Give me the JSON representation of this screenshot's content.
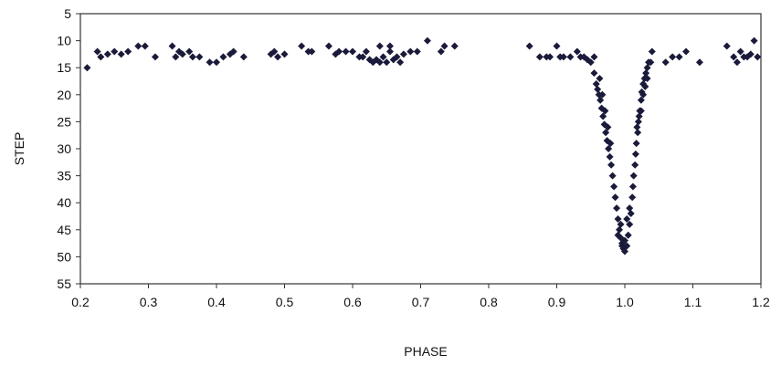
{
  "chart_data": {
    "type": "scatter",
    "title": "",
    "xlabel": "PHASE",
    "ylabel": "STEP",
    "xlim": [
      0.2,
      1.2
    ],
    "ylim": [
      5,
      55
    ],
    "y_inverted": true,
    "x_ticks": [
      "0.2",
      "0.3",
      "0.4",
      "0.5",
      "0.6",
      "0.7",
      "0.8",
      "0.9",
      "1.0",
      "1.1",
      "1.2"
    ],
    "y_ticks": [
      "5",
      "10",
      "15",
      "20",
      "25",
      "30",
      "35",
      "40",
      "45",
      "50",
      "55"
    ],
    "grid": false,
    "legend": "none",
    "marker": "diamond",
    "marker_color": "#1a1a3a",
    "series": [
      {
        "points": [
          [
            0.21,
            15
          ],
          [
            0.225,
            12
          ],
          [
            0.23,
            13
          ],
          [
            0.24,
            12.5
          ],
          [
            0.25,
            12
          ],
          [
            0.26,
            12.5
          ],
          [
            0.27,
            12
          ],
          [
            0.285,
            11
          ],
          [
            0.295,
            11
          ],
          [
            0.31,
            13
          ],
          [
            0.335,
            11
          ],
          [
            0.34,
            13
          ],
          [
            0.345,
            12
          ],
          [
            0.35,
            12.5
          ],
          [
            0.36,
            12
          ],
          [
            0.365,
            13
          ],
          [
            0.375,
            13
          ],
          [
            0.39,
            14
          ],
          [
            0.4,
            14
          ],
          [
            0.41,
            13
          ],
          [
            0.42,
            12.5
          ],
          [
            0.425,
            12
          ],
          [
            0.44,
            13
          ],
          [
            0.48,
            12.5
          ],
          [
            0.485,
            12
          ],
          [
            0.49,
            13
          ],
          [
            0.5,
            12.5
          ],
          [
            0.525,
            11
          ],
          [
            0.535,
            12
          ],
          [
            0.54,
            12
          ],
          [
            0.565,
            11
          ],
          [
            0.575,
            12.5
          ],
          [
            0.58,
            12
          ],
          [
            0.59,
            12
          ],
          [
            0.6,
            12
          ],
          [
            0.61,
            13
          ],
          [
            0.615,
            13
          ],
          [
            0.62,
            12
          ],
          [
            0.625,
            13.5
          ],
          [
            0.63,
            14
          ],
          [
            0.635,
            13.5
          ],
          [
            0.64,
            14
          ],
          [
            0.645,
            13
          ],
          [
            0.65,
            14
          ],
          [
            0.655,
            12
          ],
          [
            0.66,
            13.5
          ],
          [
            0.665,
            13
          ],
          [
            0.67,
            14
          ],
          [
            0.675,
            12.5
          ],
          [
            0.685,
            12
          ],
          [
            0.695,
            12
          ],
          [
            0.71,
            10
          ],
          [
            0.73,
            12
          ],
          [
            0.735,
            11
          ],
          [
            0.75,
            11
          ],
          [
            0.64,
            11
          ],
          [
            0.655,
            11
          ],
          [
            0.86,
            11
          ],
          [
            0.875,
            13
          ],
          [
            0.885,
            13
          ],
          [
            0.89,
            13
          ],
          [
            0.9,
            11
          ],
          [
            0.905,
            13
          ],
          [
            0.91,
            13
          ],
          [
            0.92,
            13
          ],
          [
            0.93,
            12
          ],
          [
            0.935,
            13
          ],
          [
            0.94,
            13
          ],
          [
            0.945,
            13.5
          ],
          [
            0.95,
            14
          ],
          [
            0.955,
            13
          ],
          [
            0.955,
            16
          ],
          [
            0.958,
            18
          ],
          [
            0.96,
            19
          ],
          [
            0.962,
            20
          ],
          [
            0.964,
            21
          ],
          [
            0.966,
            22.5
          ],
          [
            0.968,
            24
          ],
          [
            0.97,
            25.5
          ],
          [
            0.972,
            27
          ],
          [
            0.974,
            28.5
          ],
          [
            0.976,
            30
          ],
          [
            0.978,
            31.5
          ],
          [
            0.98,
            33
          ],
          [
            0.982,
            35
          ],
          [
            0.984,
            37
          ],
          [
            0.986,
            39
          ],
          [
            0.988,
            41
          ],
          [
            0.99,
            43
          ],
          [
            0.992,
            45
          ],
          [
            0.994,
            46.5
          ],
          [
            0.996,
            47.5
          ],
          [
            0.998,
            48.5
          ],
          [
            1.0,
            49
          ],
          [
            0.99,
            46
          ],
          [
            0.994,
            44
          ],
          [
            0.996,
            48
          ],
          [
            1.0,
            47
          ],
          [
            1.003,
            48
          ],
          [
            1.003,
            43
          ],
          [
            1.005,
            46
          ],
          [
            1.007,
            44
          ],
          [
            1.007,
            41
          ],
          [
            1.009,
            42
          ],
          [
            1.011,
            39
          ],
          [
            1.012,
            37
          ],
          [
            1.013,
            35
          ],
          [
            1.015,
            33
          ],
          [
            1.016,
            31
          ],
          [
            1.017,
            29
          ],
          [
            1.019,
            27
          ],
          [
            1.02,
            25
          ],
          [
            1.022,
            23
          ],
          [
            1.024,
            21
          ],
          [
            1.025,
            19.5
          ],
          [
            1.027,
            18
          ],
          [
            1.029,
            17
          ],
          [
            1.031,
            16
          ],
          [
            1.033,
            15
          ],
          [
            1.035,
            14
          ],
          [
            1.038,
            14
          ],
          [
            1.04,
            12
          ],
          [
            1.018,
            26
          ],
          [
            1.021,
            24
          ],
          [
            1.024,
            23
          ],
          [
            1.027,
            20
          ],
          [
            1.03,
            18.5
          ],
          [
            1.033,
            17
          ],
          [
            0.963,
            17
          ],
          [
            0.967,
            20
          ],
          [
            0.971,
            23
          ],
          [
            0.975,
            26
          ],
          [
            0.979,
            29
          ],
          [
            1.06,
            14
          ],
          [
            1.07,
            13
          ],
          [
            1.08,
            13
          ],
          [
            1.09,
            12
          ],
          [
            1.11,
            14
          ],
          [
            1.15,
            11
          ],
          [
            1.16,
            13
          ],
          [
            1.165,
            14
          ],
          [
            1.17,
            12
          ],
          [
            1.175,
            13
          ],
          [
            1.18,
            13
          ],
          [
            1.185,
            12.5
          ],
          [
            1.19,
            10
          ],
          [
            1.195,
            13
          ]
        ]
      }
    ]
  }
}
